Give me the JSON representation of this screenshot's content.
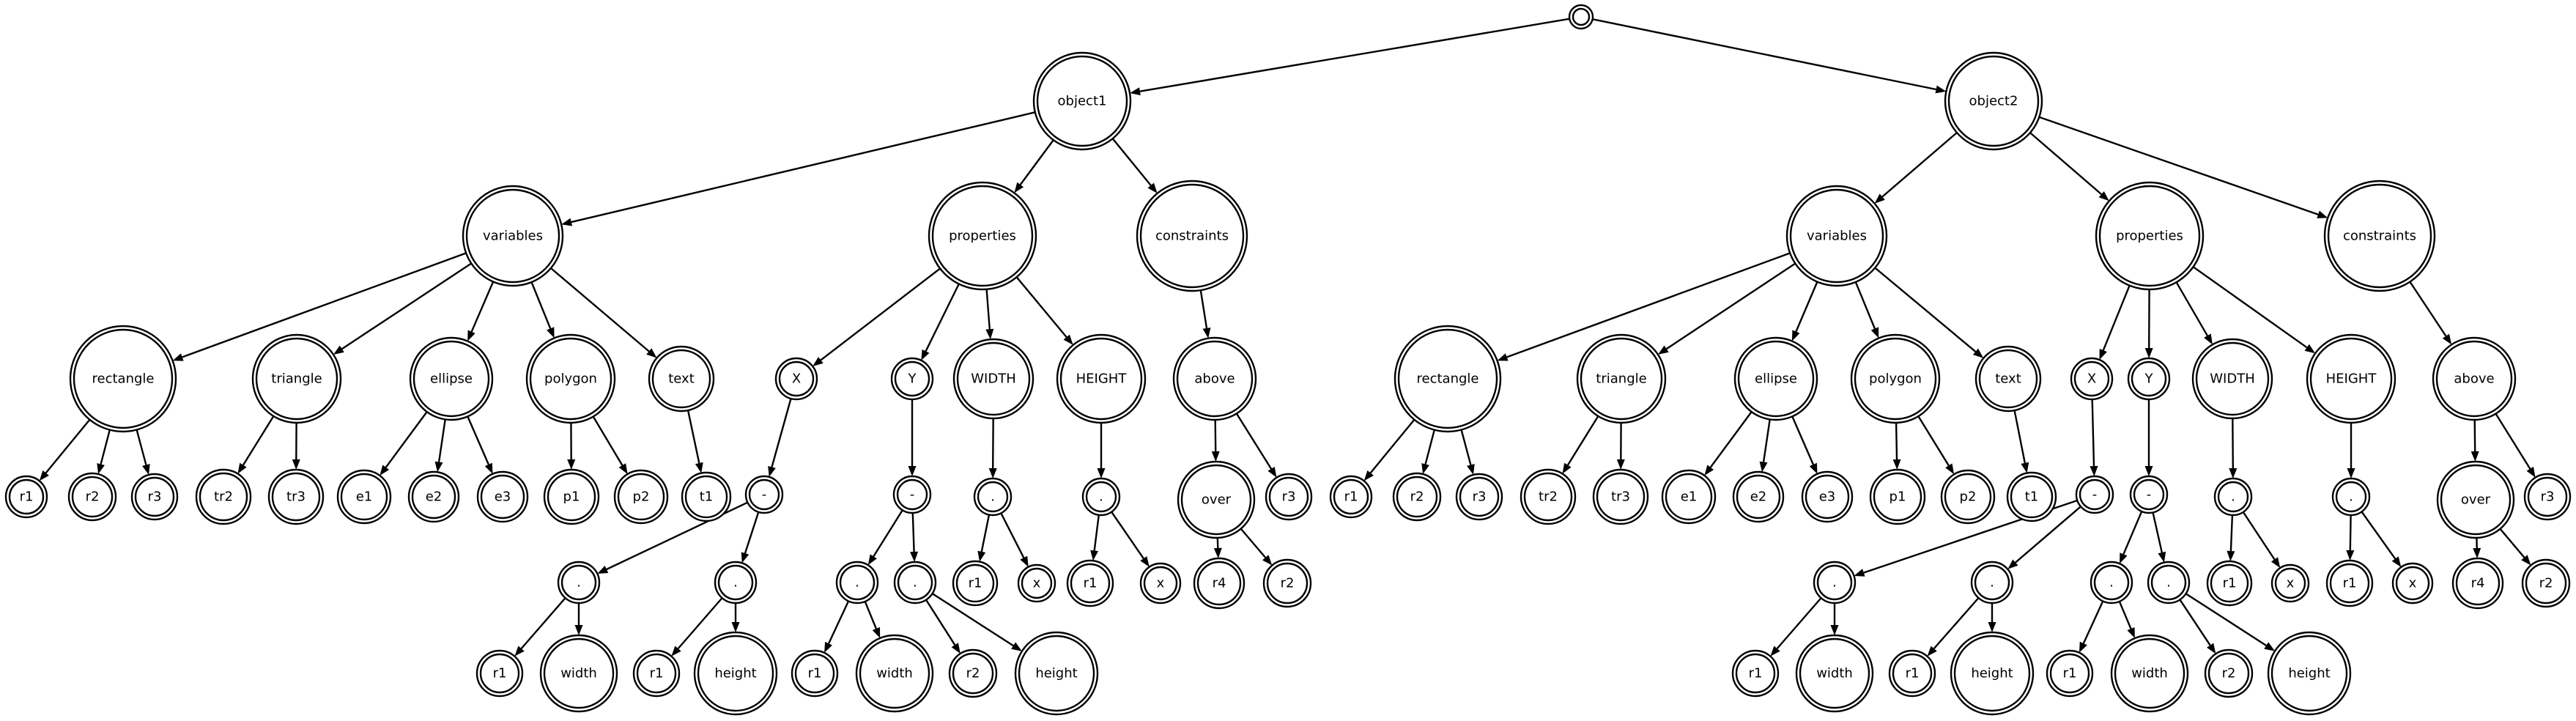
{
  "nodes": {
    "root": "",
    "o1": "object1",
    "o1v": "variables",
    "o1p": "properties",
    "o1c": "constraints",
    "o1rect": "rectangle",
    "o1tri": "triangle",
    "o1ell": "ellipse",
    "o1poly": "polygon",
    "o1text": "text",
    "o1r1": "r1",
    "o1r2": "r2",
    "o1r3": "r3",
    "o1tr2": "tr2",
    "o1tr3": "tr3",
    "o1e1": "e1",
    "o1e2": "e2",
    "o1e3": "e3",
    "o1p1": "p1",
    "o1p2": "p2",
    "o1t1": "t1",
    "o1X": "X",
    "o1Y": "Y",
    "o1W": "WIDTH",
    "o1H": "HEIGHT",
    "o1Xm": "-",
    "o1Xd1": ".",
    "o1Xd2": ".",
    "o1Xr1a": "r1",
    "o1Xwid": "width",
    "o1Xr1b": "r1",
    "o1Xhei": "height",
    "o1Ym": "-",
    "o1Yd1": ".",
    "o1Yd2": ".",
    "o1Yr1": "r1",
    "o1Ywid": "width",
    "o1Yr2": "r2",
    "o1Yhei": "height",
    "o1Wd": ".",
    "o1Wr1": "r1",
    "o1Wx": "x",
    "o1Hd": ".",
    "o1Hr1": "r1",
    "o1Hx": "x",
    "o1above": "above",
    "o1over": "over",
    "o1r3c": "r3",
    "o1r4": "r4",
    "o1r2c": "r2",
    "o2": "object2",
    "o2v": "variables",
    "o2p": "properties",
    "o2c": "constraints",
    "o2rect": "rectangle",
    "o2tri": "triangle",
    "o2ell": "ellipse",
    "o2poly": "polygon",
    "o2text": "text",
    "o2r1": "r1",
    "o2r2": "r2",
    "o2r3": "r3",
    "o2tr2": "tr2",
    "o2tr3": "tr3",
    "o2e1": "e1",
    "o2e2": "e2",
    "o2e3": "e3",
    "o2p1": "p1",
    "o2p2": "p2",
    "o2t1": "t1",
    "o2X": "X",
    "o2Y": "Y",
    "o2W": "WIDTH",
    "o2H": "HEIGHT",
    "o2Xm": "-",
    "o2Xd1": ".",
    "o2Xd2": ".",
    "o2Xr1a": "r1",
    "o2Xwid": "width",
    "o2Xr1b": "r1",
    "o2Xhei": "height",
    "o2Ym": "-",
    "o2Yd1": ".",
    "o2Yd2": ".",
    "o2Yr1": "r1",
    "o2Ywid": "width",
    "o2Yr2": "r2",
    "o2Yhei": "height",
    "o2Wd": ".",
    "o2Wr1": "r1",
    "o2Wx": "x",
    "o2Hd": ".",
    "o2Hr1": "r1",
    "o2Hx": "x",
    "o2above": "above",
    "o2over": "over",
    "o2r3c": "r3",
    "o2r4": "r4",
    "o2r2c": "r2"
  },
  "edges": [
    [
      "root",
      "o1"
    ],
    [
      "root",
      "o2"
    ],
    [
      "o1",
      "o1v"
    ],
    [
      "o1",
      "o1p"
    ],
    [
      "o1",
      "o1c"
    ],
    [
      "o1v",
      "o1rect"
    ],
    [
      "o1v",
      "o1tri"
    ],
    [
      "o1v",
      "o1ell"
    ],
    [
      "o1v",
      "o1poly"
    ],
    [
      "o1v",
      "o1text"
    ],
    [
      "o1rect",
      "o1r1"
    ],
    [
      "o1rect",
      "o1r2"
    ],
    [
      "o1rect",
      "o1r3"
    ],
    [
      "o1tri",
      "o1tr2"
    ],
    [
      "o1tri",
      "o1tr3"
    ],
    [
      "o1ell",
      "o1e1"
    ],
    [
      "o1ell",
      "o1e2"
    ],
    [
      "o1ell",
      "o1e3"
    ],
    [
      "o1poly",
      "o1p1"
    ],
    [
      "o1poly",
      "o1p2"
    ],
    [
      "o1text",
      "o1t1"
    ],
    [
      "o1p",
      "o1X"
    ],
    [
      "o1p",
      "o1Y"
    ],
    [
      "o1p",
      "o1W"
    ],
    [
      "o1p",
      "o1H"
    ],
    [
      "o1X",
      "o1Xm"
    ],
    [
      "o1Xm",
      "o1Xd1"
    ],
    [
      "o1Xm",
      "o1Xd2"
    ],
    [
      "o1Xd1",
      "o1Xr1a"
    ],
    [
      "o1Xd1",
      "o1Xwid"
    ],
    [
      "o1Xd2",
      "o1Xr1b"
    ],
    [
      "o1Xd2",
      "o1Xhei"
    ],
    [
      "o1Y",
      "o1Ym"
    ],
    [
      "o1Ym",
      "o1Yd1"
    ],
    [
      "o1Ym",
      "o1Yd2"
    ],
    [
      "o1Yd1",
      "o1Yr1"
    ],
    [
      "o1Yd1",
      "o1Ywid"
    ],
    [
      "o1Yd2",
      "o1Yr2"
    ],
    [
      "o1Yd2",
      "o1Yhei"
    ],
    [
      "o1W",
      "o1Wd"
    ],
    [
      "o1Wd",
      "o1Wr1"
    ],
    [
      "o1Wd",
      "o1Wx"
    ],
    [
      "o1H",
      "o1Hd"
    ],
    [
      "o1Hd",
      "o1Hr1"
    ],
    [
      "o1Hd",
      "o1Hx"
    ],
    [
      "o1c",
      "o1above"
    ],
    [
      "o1above",
      "o1over"
    ],
    [
      "o1above",
      "o1r3c"
    ],
    [
      "o1over",
      "o1r4"
    ],
    [
      "o1over",
      "o1r2c"
    ],
    [
      "o2",
      "o2v"
    ],
    [
      "o2",
      "o2p"
    ],
    [
      "o2",
      "o2c"
    ],
    [
      "o2v",
      "o2rect"
    ],
    [
      "o2v",
      "o2tri"
    ],
    [
      "o2v",
      "o2ell"
    ],
    [
      "o2v",
      "o2poly"
    ],
    [
      "o2v",
      "o2text"
    ],
    [
      "o2rect",
      "o2r1"
    ],
    [
      "o2rect",
      "o2r2"
    ],
    [
      "o2rect",
      "o2r3"
    ],
    [
      "o2tri",
      "o2tr2"
    ],
    [
      "o2tri",
      "o2tr3"
    ],
    [
      "o2ell",
      "o2e1"
    ],
    [
      "o2ell",
      "o2e2"
    ],
    [
      "o2ell",
      "o2e3"
    ],
    [
      "o2poly",
      "o2p1"
    ],
    [
      "o2poly",
      "o2p2"
    ],
    [
      "o2text",
      "o2t1"
    ],
    [
      "o2p",
      "o2X"
    ],
    [
      "o2p",
      "o2Y"
    ],
    [
      "o2p",
      "o2W"
    ],
    [
      "o2p",
      "o2H"
    ],
    [
      "o2X",
      "o2Xm"
    ],
    [
      "o2Xm",
      "o2Xd1"
    ],
    [
      "o2Xm",
      "o2Xd2"
    ],
    [
      "o2Xd1",
      "o2Xr1a"
    ],
    [
      "o2Xd1",
      "o2Xwid"
    ],
    [
      "o2Xd2",
      "o2Xr1b"
    ],
    [
      "o2Xd2",
      "o2Xhei"
    ],
    [
      "o2Y",
      "o2Ym"
    ],
    [
      "o2Ym",
      "o2Yd1"
    ],
    [
      "o2Ym",
      "o2Yd2"
    ],
    [
      "o2Yd1",
      "o2Yr1"
    ],
    [
      "o2Yd1",
      "o2Ywid"
    ],
    [
      "o2Yd2",
      "o2Yr2"
    ],
    [
      "o2Yd2",
      "o2Yhei"
    ],
    [
      "o2W",
      "o2Wd"
    ],
    [
      "o2Wd",
      "o2Wr1"
    ],
    [
      "o2Wd",
      "o2Wx"
    ],
    [
      "o2H",
      "o2Hd"
    ],
    [
      "o2Hd",
      "o2Hr1"
    ],
    [
      "o2Hd",
      "o2Hx"
    ],
    [
      "o2c",
      "o2above"
    ],
    [
      "o2above",
      "o2over"
    ],
    [
      "o2above",
      "o2r3c"
    ],
    [
      "o2over",
      "o2r4"
    ],
    [
      "o2over",
      "o2r2c"
    ]
  ]
}
